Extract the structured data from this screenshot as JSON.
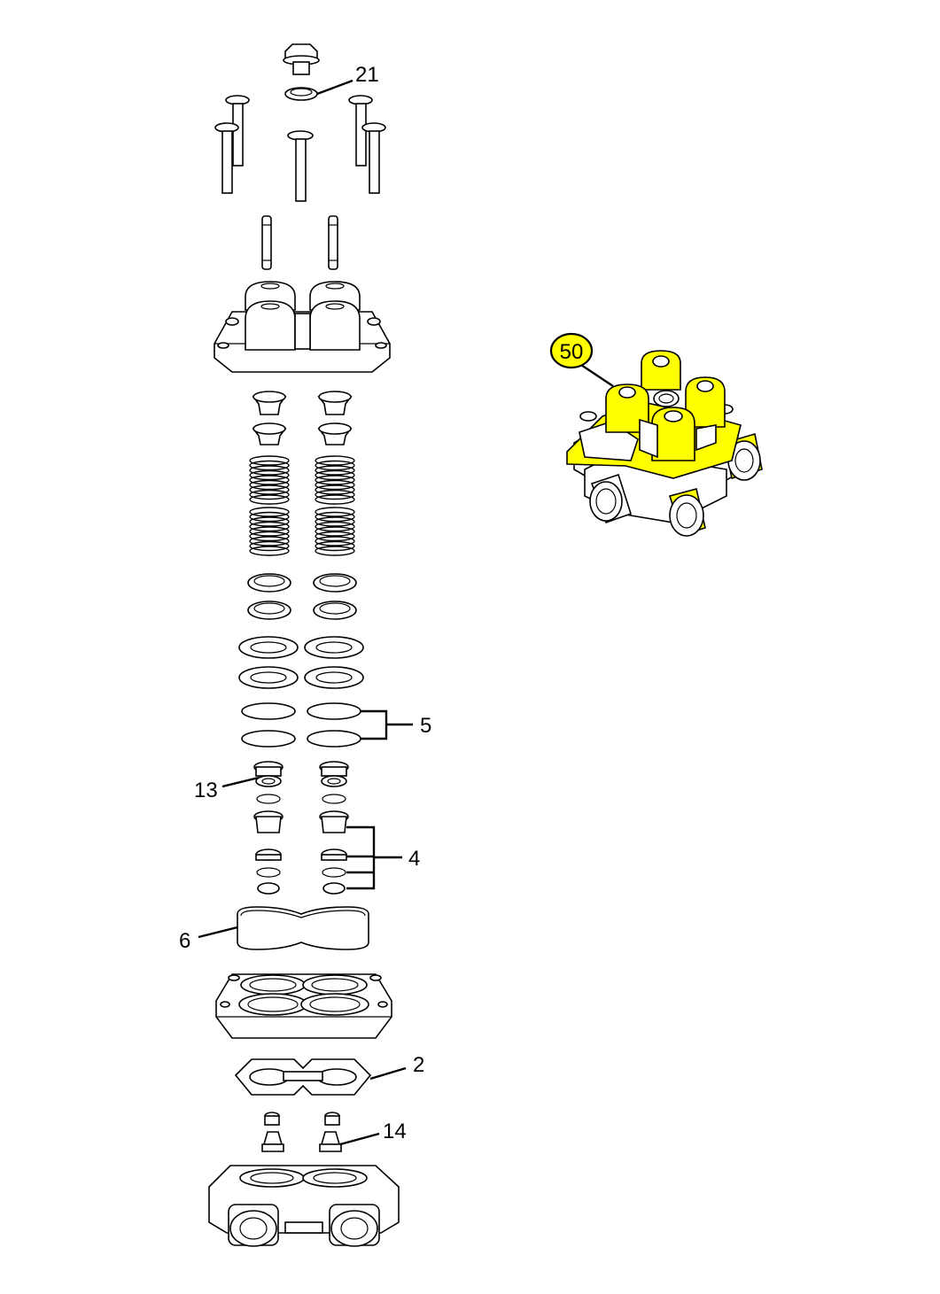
{
  "callouts": {
    "c21": "21",
    "c5": "5",
    "c13": "13",
    "c4": "4",
    "c6": "6",
    "c2": "2",
    "c14": "14",
    "c50": "50"
  },
  "colors": {
    "highlight": "#ffff00",
    "line": "#000000",
    "background": "#ffffff"
  }
}
